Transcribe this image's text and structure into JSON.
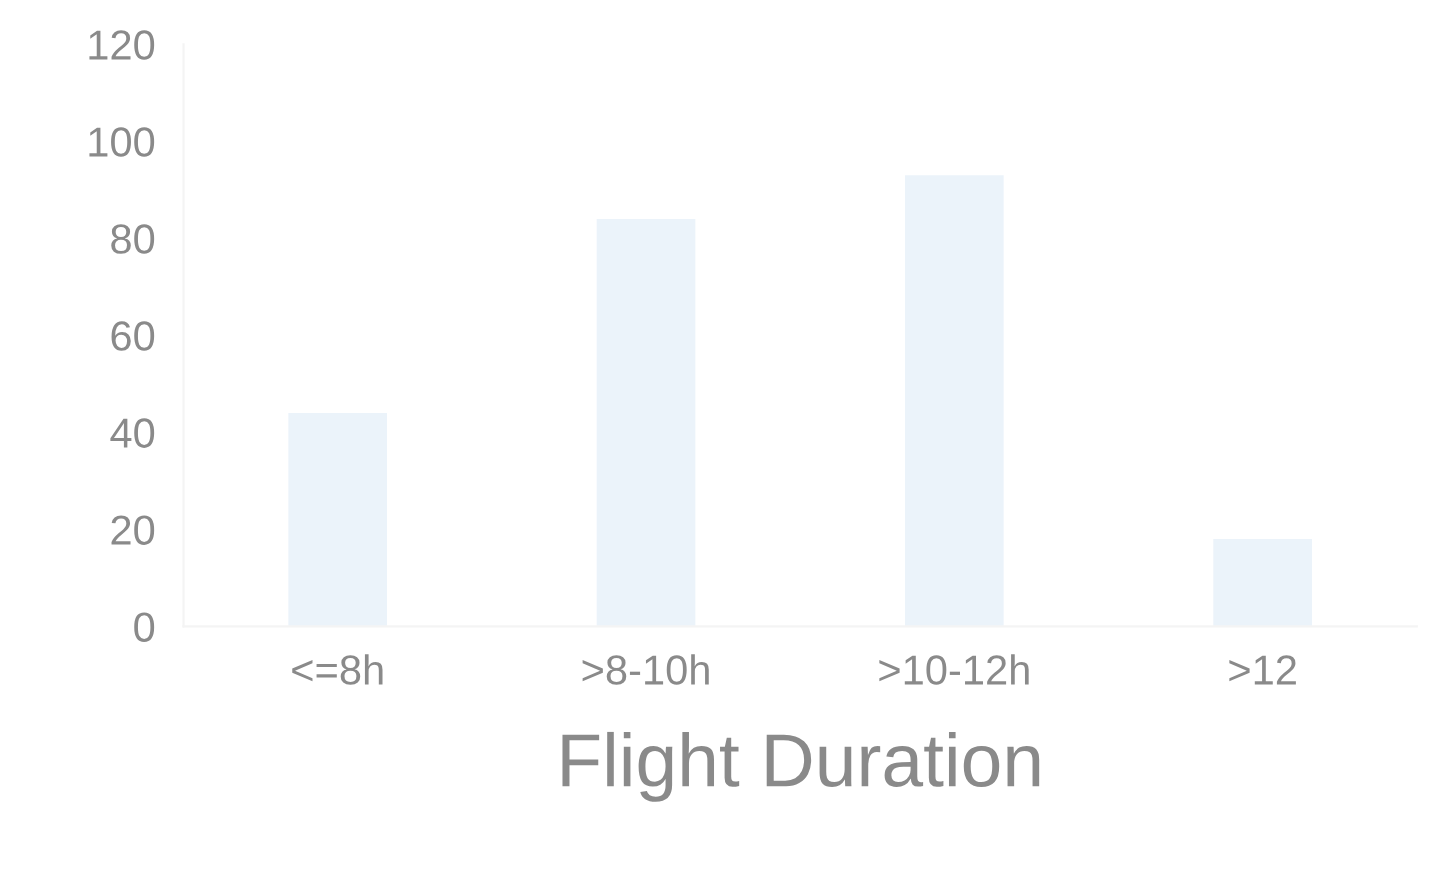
{
  "chart_data": {
    "type": "bar",
    "xlabel": "Flight Duration",
    "categories": [
      "<=8h",
      ">8-10h",
      ">10-12h",
      ">12"
    ],
    "values": [
      44,
      84,
      93,
      18
    ],
    "color": "#ebf3fa",
    "ylim": [
      0,
      120
    ],
    "yticks": [
      0,
      20,
      40,
      60,
      80,
      100,
      120
    ],
    "grid": false
  }
}
